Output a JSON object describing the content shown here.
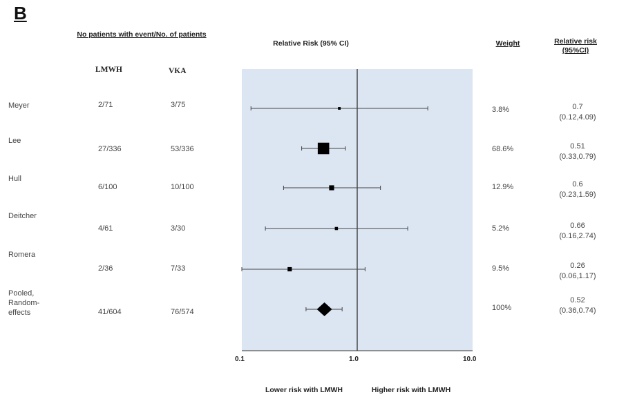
{
  "panel_label": "B",
  "chart_data": {
    "type": "forest",
    "title": "Relative Risk (95% CI)",
    "xscale": "log",
    "xlim": [
      0.1,
      10.0
    ],
    "x_ticks": [
      "0.1",
      "1.0",
      "10.0"
    ],
    "reference_line": 1.0,
    "columns": {
      "events_header": "No patients with event/No. of patients",
      "lmwh": "LMWH",
      "vka": "VKA",
      "weight": "Weight",
      "rr": "Relative risk (95%CI)"
    },
    "rows": [
      {
        "study": "Meyer",
        "lmwh": "2/71",
        "vka": "3/75",
        "rr": 0.7,
        "lo": 0.12,
        "hi": 4.09,
        "weight": "3.8%",
        "rr_text": "0.7",
        "ci_text": "(0.12,4.09)",
        "pooled": false
      },
      {
        "study": "Lee",
        "lmwh": "27/336",
        "vka": "53/336",
        "rr": 0.51,
        "lo": 0.33,
        "hi": 0.79,
        "weight": "68.6%",
        "rr_text": "0.51",
        "ci_text": "(0.33,0.79)",
        "pooled": false
      },
      {
        "study": "Hull",
        "lmwh": "6/100",
        "vka": "10/100",
        "rr": 0.6,
        "lo": 0.23,
        "hi": 1.59,
        "weight": "12.9%",
        "rr_text": "0.6",
        "ci_text": "(0.23,1.59)",
        "pooled": false
      },
      {
        "study": "Deitcher",
        "lmwh": "4/61",
        "vka": "3/30",
        "rr": 0.66,
        "lo": 0.16,
        "hi": 2.74,
        "weight": "5.2%",
        "rr_text": "0.66",
        "ci_text": "(0.16,2.74)",
        "pooled": false
      },
      {
        "study": "Romera",
        "lmwh": "2/36",
        "vka": "7/33",
        "rr": 0.26,
        "lo": 0.06,
        "hi": 1.17,
        "weight": "9.5%",
        "rr_text": "0.26",
        "ci_text": "(0.06,1.17)",
        "pooled": false
      },
      {
        "study": "Pooled, Random-effects",
        "lmwh": "41/604",
        "vka": "76/574",
        "rr": 0.52,
        "lo": 0.36,
        "hi": 0.74,
        "weight": "100%",
        "rr_text": "0.52",
        "ci_text": "(0.36,0.74)",
        "pooled": true
      }
    ],
    "footer_left": "Lower risk with LMWH",
    "footer_right": "Higher risk with LMWH",
    "colors": {
      "plot_bg": "#dce5f2",
      "marker": "#000000",
      "ci_line": "#444444"
    }
  }
}
